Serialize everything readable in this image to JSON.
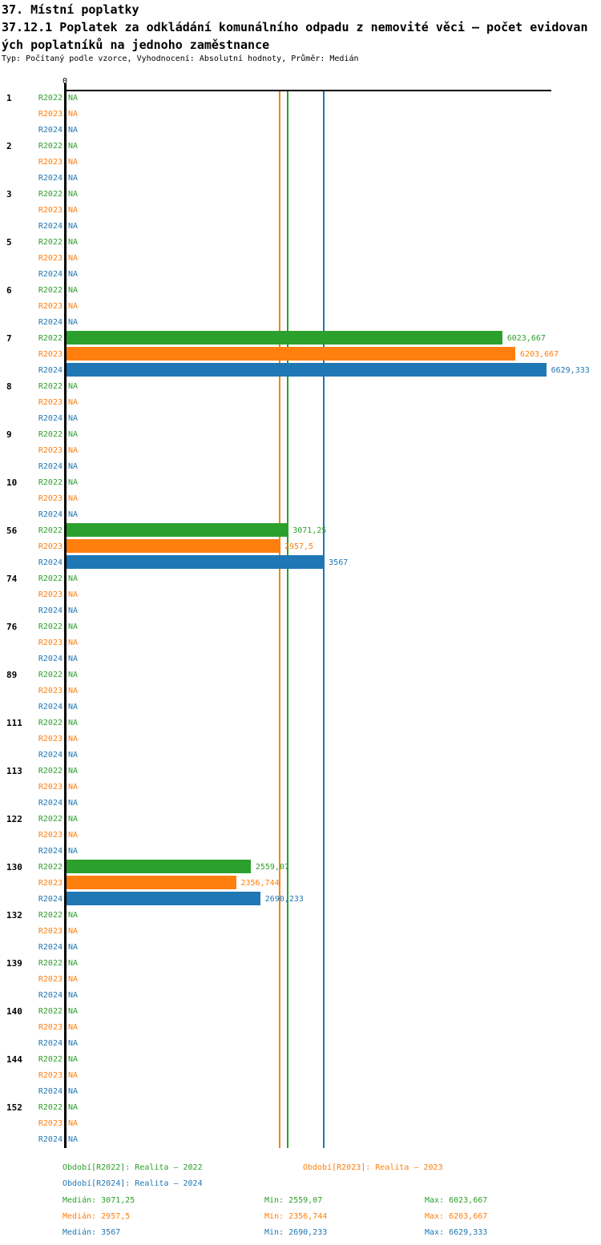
{
  "header": {
    "title": "37. Místní poplatky",
    "subtitle_lines": [
      "37.12.1 Poplatek za odkládání komunálního odpadu z nemovité věci – počet evidovan",
      "ých poplatníků na jednoho zaměstnance"
    ],
    "meta": "Typ: Počítaný podle vzorce, Vyhodnocení: Absolutní hodnoty, Průměr: Medián"
  },
  "colors": {
    "R2022": "#2ca02c",
    "R2023": "#ff7f0e",
    "R2024": "#1f77b4",
    "axis": "#000000"
  },
  "chart_data": {
    "type": "bar",
    "orientation": "horizontal",
    "title": "37.12.1 Poplatek za odkládání komunálního odpadu z nemovité věci – počet evidovaných poplatníků na jednoho zaměstnance",
    "zero_label": "0",
    "na_label": "NA",
    "xlim": [
      0,
      6700
    ],
    "legend_position": "bottom",
    "series": [
      "R2022",
      "R2023",
      "R2024"
    ],
    "categories": [
      {
        "label": "1",
        "values": [
          null,
          null,
          null
        ]
      },
      {
        "label": "2",
        "values": [
          null,
          null,
          null
        ]
      },
      {
        "label": "3",
        "values": [
          null,
          null,
          null
        ]
      },
      {
        "label": "5",
        "values": [
          null,
          null,
          null
        ]
      },
      {
        "label": "6",
        "values": [
          null,
          null,
          null
        ]
      },
      {
        "label": "7",
        "values": [
          6023.667,
          6203.667,
          6629.333
        ],
        "value_labels": [
          "6023,667",
          "6203,667",
          "6629,333"
        ]
      },
      {
        "label": "8",
        "values": [
          null,
          null,
          null
        ]
      },
      {
        "label": "9",
        "values": [
          null,
          null,
          null
        ]
      },
      {
        "label": "10",
        "values": [
          null,
          null,
          null
        ]
      },
      {
        "label": "56",
        "values": [
          3071.25,
          2957.5,
          3567
        ],
        "value_labels": [
          "3071,25",
          "2957,5",
          "3567"
        ]
      },
      {
        "label": "74",
        "values": [
          null,
          null,
          null
        ]
      },
      {
        "label": "76",
        "values": [
          null,
          null,
          null
        ]
      },
      {
        "label": "89",
        "values": [
          null,
          null,
          null
        ]
      },
      {
        "label": "111",
        "values": [
          null,
          null,
          null
        ]
      },
      {
        "label": "113",
        "values": [
          null,
          null,
          null
        ]
      },
      {
        "label": "122",
        "values": [
          null,
          null,
          null
        ]
      },
      {
        "label": "130",
        "values": [
          2559.07,
          2356.744,
          2690.233
        ],
        "value_labels": [
          "2559,07",
          "2356,744",
          "2690,233"
        ]
      },
      {
        "label": "132",
        "values": [
          null,
          null,
          null
        ]
      },
      {
        "label": "139",
        "values": [
          null,
          null,
          null
        ]
      },
      {
        "label": "140",
        "values": [
          null,
          null,
          null
        ]
      },
      {
        "label": "144",
        "values": [
          null,
          null,
          null
        ]
      },
      {
        "label": "152",
        "values": [
          null,
          null,
          null
        ]
      }
    ],
    "median_lines": [
      {
        "series": "R2022",
        "value": 3071.25
      },
      {
        "series": "R2023",
        "value": 2957.5
      },
      {
        "series": "R2024",
        "value": 3567
      }
    ]
  },
  "legend": {
    "periods": [
      {
        "series": "R2022",
        "text": "Období[R2022]: Realita – 2022"
      },
      {
        "series": "R2023",
        "text": "Období[R2023]: Realita – 2023"
      },
      {
        "series": "R2024",
        "text": "Období[R2024]: Realita – 2024"
      }
    ],
    "stats": [
      {
        "series": "R2022",
        "median": "Medián: 3071,25",
        "min": "Min: 2559,07",
        "max": "Max: 6023,667"
      },
      {
        "series": "R2023",
        "median": "Medián: 2957,5",
        "min": "Min: 2356,744",
        "max": "Max: 6203,667"
      },
      {
        "series": "R2024",
        "median": "Medián: 3567",
        "min": "Min: 2690,233",
        "max": "Max: 6629,333"
      }
    ]
  }
}
